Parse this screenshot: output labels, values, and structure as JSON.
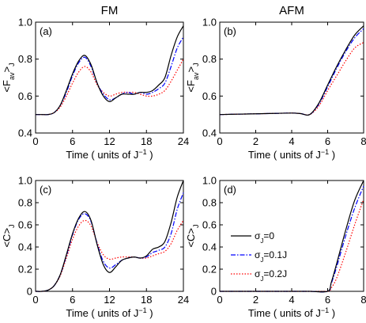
{
  "figure": {
    "column_titles": [
      "FM",
      "AFM"
    ]
  },
  "legend": {
    "entries": [
      {
        "label": "σ",
        "sub": "J",
        "suffix": "=0",
        "color": "#000000",
        "dash": "solid"
      },
      {
        "label": "σ",
        "sub": "J",
        "suffix": "=0.1J",
        "color": "#0000ff",
        "dash": "dashdot"
      },
      {
        "label": "σ",
        "sub": "J",
        "suffix": "=0.2J",
        "color": "#ff0000",
        "dash": "dotted"
      }
    ]
  },
  "chart_data": [
    {
      "panel": "(a)",
      "column": "FM",
      "type": "line",
      "xlabel": "Time ( units of J",
      "xlabel_sup": "−1",
      "xlabel_tail": " )",
      "ylabel": "<F",
      "ylabel_sub": "av",
      "ylabel_tail": ">",
      "ylabel_sub2": "J",
      "xlim": [
        0,
        24
      ],
      "ylim": [
        0.4,
        1.0
      ],
      "xticks": [
        0,
        6,
        12,
        18,
        24
      ],
      "yticks": [
        0.4,
        0.6,
        0.8,
        1.0
      ],
      "ytick_labels": [
        "0.4",
        "0.6",
        "0.8",
        "1.0"
      ],
      "x": [
        0,
        1,
        2,
        3,
        4,
        5,
        6,
        7,
        8,
        9,
        10,
        11,
        12,
        13,
        14,
        15,
        16,
        17,
        18,
        19,
        20,
        21,
        22,
        23,
        24
      ],
      "series": [
        {
          "name": "σ_J=0",
          "color": "#000000",
          "dash": "solid",
          "values": [
            0.5,
            0.5,
            0.5,
            0.51,
            0.55,
            0.63,
            0.72,
            0.79,
            0.82,
            0.77,
            0.67,
            0.6,
            0.57,
            0.59,
            0.61,
            0.61,
            0.61,
            0.62,
            0.62,
            0.63,
            0.66,
            0.7,
            0.82,
            0.92,
            0.98
          ]
        },
        {
          "name": "σ_J=0.1J",
          "color": "#0000ff",
          "dash": "dashdot",
          "values": [
            0.5,
            0.5,
            0.5,
            0.51,
            0.55,
            0.62,
            0.71,
            0.78,
            0.81,
            0.76,
            0.67,
            0.61,
            0.58,
            0.59,
            0.61,
            0.62,
            0.61,
            0.62,
            0.61,
            0.62,
            0.64,
            0.67,
            0.76,
            0.86,
            0.92
          ]
        },
        {
          "name": "σ_J=0.2J",
          "color": "#ff0000",
          "dash": "dotted",
          "values": [
            0.5,
            0.5,
            0.5,
            0.51,
            0.54,
            0.6,
            0.67,
            0.73,
            0.76,
            0.73,
            0.66,
            0.62,
            0.6,
            0.61,
            0.62,
            0.62,
            0.62,
            0.61,
            0.6,
            0.6,
            0.61,
            0.63,
            0.68,
            0.74,
            0.8
          ]
        }
      ]
    },
    {
      "panel": "(b)",
      "column": "AFM",
      "type": "line",
      "xlabel": "Time ( units of J",
      "xlabel_sup": "−1",
      "xlabel_tail": " )",
      "ylabel": "<F",
      "ylabel_sub": "av",
      "ylabel_tail": ">",
      "ylabel_sub2": "J",
      "xlim": [
        0,
        8
      ],
      "ylim": [
        0.4,
        1.0
      ],
      "xticks": [
        0,
        2,
        4,
        6,
        8
      ],
      "yticks": [
        0.4,
        0.6,
        0.8,
        1.0
      ],
      "ytick_labels": [
        "0.4",
        "0.6",
        "0.8",
        "1.0"
      ],
      "x": [
        0,
        1,
        2,
        3,
        4,
        4.5,
        5,
        5.5,
        6,
        6.5,
        7,
        7.5,
        8
      ],
      "series": [
        {
          "name": "σ_J=0",
          "color": "#000000",
          "dash": "solid",
          "values": [
            0.5,
            0.502,
            0.504,
            0.506,
            0.508,
            0.505,
            0.5,
            0.56,
            0.66,
            0.76,
            0.85,
            0.93,
            0.98
          ]
        },
        {
          "name": "σ_J=0.1J",
          "color": "#0000ff",
          "dash": "dashdot",
          "values": [
            0.5,
            0.502,
            0.504,
            0.506,
            0.508,
            0.505,
            0.5,
            0.555,
            0.65,
            0.75,
            0.84,
            0.915,
            0.965
          ]
        },
        {
          "name": "σ_J=0.2J",
          "color": "#ff0000",
          "dash": "dotted",
          "values": [
            0.5,
            0.502,
            0.504,
            0.506,
            0.508,
            0.505,
            0.5,
            0.545,
            0.63,
            0.71,
            0.79,
            0.86,
            0.89
          ]
        }
      ]
    },
    {
      "panel": "(c)",
      "column": "FM",
      "type": "line",
      "xlabel": "Time ( units of J",
      "xlabel_sup": "−1",
      "xlabel_tail": " )",
      "ylabel": "<C>",
      "ylabel_sub": "J",
      "xlim": [
        0,
        24
      ],
      "ylim": [
        0.0,
        1.0
      ],
      "xticks": [
        0,
        6,
        12,
        18,
        24
      ],
      "yticks": [
        0,
        0.2,
        0.4,
        0.6,
        0.8,
        1.0
      ],
      "ytick_labels": [
        "0",
        "0.2",
        "0.4",
        "0.6",
        "0.8",
        "1.0"
      ],
      "x": [
        0,
        1,
        2,
        3,
        4,
        5,
        6,
        7,
        8,
        9,
        10,
        11,
        12,
        13,
        14,
        15,
        16,
        17,
        18,
        19,
        20,
        21,
        22,
        23,
        24
      ],
      "series": [
        {
          "name": "σ_J=0",
          "color": "#000000",
          "dash": "solid",
          "values": [
            0.0,
            0.0,
            0.01,
            0.05,
            0.15,
            0.33,
            0.52,
            0.66,
            0.72,
            0.64,
            0.42,
            0.24,
            0.17,
            0.22,
            0.28,
            0.3,
            0.31,
            0.3,
            0.32,
            0.38,
            0.4,
            0.45,
            0.62,
            0.85,
            1.0
          ]
        },
        {
          "name": "σ_J=0.1J",
          "color": "#0000ff",
          "dash": "dashdot",
          "values": [
            0.0,
            0.0,
            0.01,
            0.05,
            0.15,
            0.32,
            0.51,
            0.65,
            0.7,
            0.63,
            0.43,
            0.27,
            0.21,
            0.24,
            0.28,
            0.3,
            0.31,
            0.3,
            0.31,
            0.35,
            0.37,
            0.4,
            0.52,
            0.74,
            0.89
          ]
        },
        {
          "name": "σ_J=0.2J",
          "color": "#ff0000",
          "dash": "dotted",
          "values": [
            0.0,
            0.0,
            0.01,
            0.05,
            0.14,
            0.3,
            0.47,
            0.59,
            0.64,
            0.59,
            0.44,
            0.33,
            0.29,
            0.3,
            0.31,
            0.31,
            0.31,
            0.3,
            0.3,
            0.32,
            0.34,
            0.36,
            0.43,
            0.55,
            0.64
          ]
        }
      ]
    },
    {
      "panel": "(d)",
      "column": "AFM",
      "type": "line",
      "xlabel": "Time ( units of J",
      "xlabel_sup": "−1",
      "xlabel_tail": " )",
      "ylabel": "<C>",
      "ylabel_sub": "J",
      "xlim": [
        0,
        8
      ],
      "ylim": [
        0.0,
        1.0
      ],
      "xticks": [
        0,
        2,
        4,
        6,
        8
      ],
      "yticks": [
        0,
        0.2,
        0.4,
        0.6,
        0.8,
        1.0
      ],
      "ytick_labels": [
        "0",
        "0.2",
        "0.4",
        "0.6",
        "0.8",
        "1.0"
      ],
      "x": [
        0,
        1,
        2,
        3,
        4,
        5,
        6,
        6.2,
        6.5,
        7,
        7.5,
        8
      ],
      "series": [
        {
          "name": "σ_J=0",
          "color": "#000000",
          "dash": "solid",
          "values": [
            0,
            0,
            0,
            0,
            0,
            0,
            0,
            0.08,
            0.25,
            0.55,
            0.82,
            1.0
          ]
        },
        {
          "name": "σ_J=0.1J",
          "color": "#0000ff",
          "dash": "dashdot",
          "values": [
            0,
            0,
            0,
            0,
            0,
            0,
            0,
            0.07,
            0.22,
            0.5,
            0.75,
            0.95
          ]
        },
        {
          "name": "σ_J=0.2J",
          "color": "#ff0000",
          "dash": "dotted",
          "values": [
            0,
            0,
            0,
            0,
            0,
            0,
            0,
            0.03,
            0.12,
            0.35,
            0.6,
            0.83
          ]
        }
      ]
    }
  ]
}
